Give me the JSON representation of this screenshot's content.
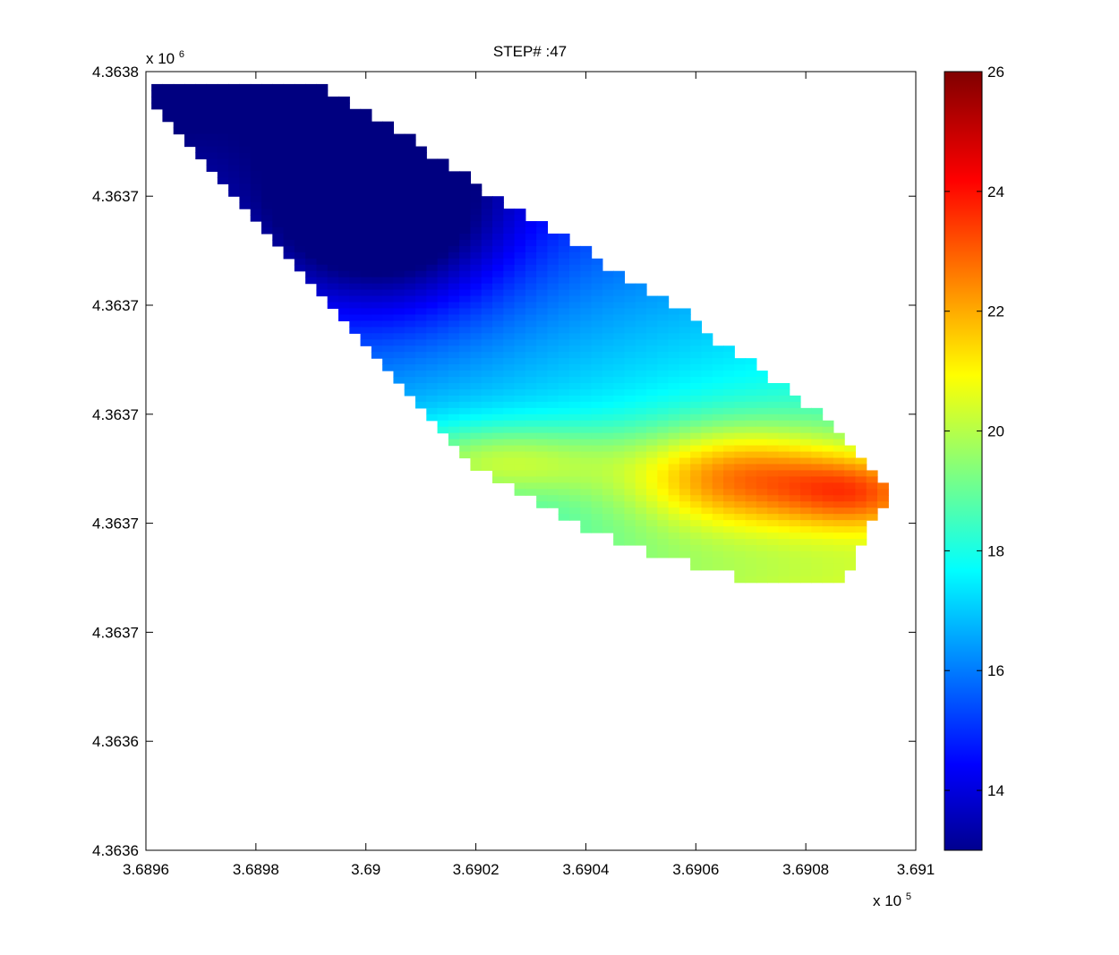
{
  "chart_data": {
    "type": "heatmap",
    "title": "STEP# :47",
    "xlabel": "",
    "ylabel": "",
    "x_axis": {
      "range": [
        368960,
        369100
      ],
      "exponent_label": "x 10",
      "exponent": "5",
      "tick_values": [
        368960,
        368980,
        369000,
        369020,
        369040,
        369060,
        369080,
        369100
      ],
      "tick_labels": [
        "3.6896",
        "3.6898",
        "3.69",
        "3.6902",
        "3.6904",
        "3.6906",
        "3.6908",
        "3.691"
      ]
    },
    "y_axis": {
      "range": [
        4363555,
        4363805
      ],
      "exponent_label": "x 10",
      "exponent": "6",
      "tick_values": [
        4363555,
        4363590,
        4363625,
        4363660,
        4363695,
        4363730,
        4363765,
        4363805
      ],
      "tick_labels": [
        "4.3636",
        "4.3636",
        "4.3637",
        "4.3637",
        "4.3637",
        "4.3637",
        "4.3637",
        "4.3638"
      ]
    },
    "colorbar": {
      "range": [
        13,
        26
      ],
      "tick_values": [
        14,
        16,
        18,
        20,
        22,
        24,
        26
      ],
      "tick_labels": [
        "14",
        "16",
        "18",
        "20",
        "22",
        "24",
        "26"
      ],
      "colormap": "jet"
    },
    "grid": false,
    "cell_size": [
      2,
      2
    ],
    "grid_origin": [
      368961,
      4363570
    ],
    "rows": [
      {
        "y": 4363801,
        "x0": 368961,
        "x1": 368993
      },
      {
        "y": 4363797,
        "x0": 368961,
        "x1": 368997
      },
      {
        "y": 4363793,
        "x0": 368963,
        "x1": 369001
      },
      {
        "y": 4363789,
        "x0": 368965,
        "x1": 369005
      },
      {
        "y": 4363785,
        "x0": 368967,
        "x1": 369009
      },
      {
        "y": 4363781,
        "x0": 368969,
        "x1": 369011
      },
      {
        "y": 4363777,
        "x0": 368971,
        "x1": 369015
      },
      {
        "y": 4363773,
        "x0": 368973,
        "x1": 369019
      },
      {
        "y": 4363769,
        "x0": 368975,
        "x1": 369021
      },
      {
        "y": 4363765,
        "x0": 368977,
        "x1": 369025
      },
      {
        "y": 4363761,
        "x0": 368979,
        "x1": 369029
      },
      {
        "y": 4363757,
        "x0": 368981,
        "x1": 369033
      },
      {
        "y": 4363753,
        "x0": 368983,
        "x1": 369037
      },
      {
        "y": 4363749,
        "x0": 368985,
        "x1": 369041
      },
      {
        "y": 4363745,
        "x0": 368987,
        "x1": 369043
      },
      {
        "y": 4363741,
        "x0": 368989,
        "x1": 369047
      },
      {
        "y": 4363737,
        "x0": 368991,
        "x1": 369051
      },
      {
        "y": 4363733,
        "x0": 368993,
        "x1": 369055
      },
      {
        "y": 4363729,
        "x0": 368995,
        "x1": 369059
      },
      {
        "y": 4363725,
        "x0": 368997,
        "x1": 369061
      },
      {
        "y": 4363721,
        "x0": 368999,
        "x1": 369063
      },
      {
        "y": 4363717,
        "x0": 369001,
        "x1": 369067
      },
      {
        "y": 4363713,
        "x0": 369003,
        "x1": 369071
      },
      {
        "y": 4363709,
        "x0": 369005,
        "x1": 369073
      },
      {
        "y": 4363705,
        "x0": 369007,
        "x1": 369077
      },
      {
        "y": 4363701,
        "x0": 369009,
        "x1": 369079
      },
      {
        "y": 4363697,
        "x0": 369011,
        "x1": 369083
      },
      {
        "y": 4363693,
        "x0": 369013,
        "x1": 369085
      },
      {
        "y": 4363689,
        "x0": 369015,
        "x1": 369087
      },
      {
        "y": 4363685,
        "x0": 369017,
        "x1": 369089
      },
      {
        "y": 4363681,
        "x0": 369019,
        "x1": 369091
      },
      {
        "y": 4363677,
        "x0": 369023,
        "x1": 369093
      },
      {
        "y": 4363673,
        "x0": 369027,
        "x1": 369095
      },
      {
        "y": 4363669,
        "x0": 369031,
        "x1": 369095
      },
      {
        "y": 4363665,
        "x0": 369035,
        "x1": 369093
      },
      {
        "y": 4363661,
        "x0": 369039,
        "x1": 369091
      },
      {
        "y": 4363657,
        "x0": 369045,
        "x1": 369091
      },
      {
        "y": 4363653,
        "x0": 369051,
        "x1": 369089
      },
      {
        "y": 4363649,
        "x0": 369059,
        "x1": 369089
      },
      {
        "y": 4363645,
        "x0": 369067,
        "x1": 369087
      }
    ],
    "value_field": {
      "background": 20.5,
      "features": [
        {
          "x": 369004,
          "y": 4363757,
          "peak": -3.3,
          "sx": 22,
          "sy": 30
        },
        {
          "x": 369068,
          "y": 4363675,
          "peak": 3.8,
          "sx": 20,
          "sy": 16
        },
        {
          "x": 369024,
          "y": 4363680,
          "peak": 2.4,
          "sx": 22,
          "sy": 12
        },
        {
          "x": 369090,
          "y": 4363670,
          "peak": 3.0,
          "sx": 14,
          "sy": 12
        }
      ],
      "gradient": {
        "dx": 0.02,
        "dy": -0.035
      }
    }
  }
}
